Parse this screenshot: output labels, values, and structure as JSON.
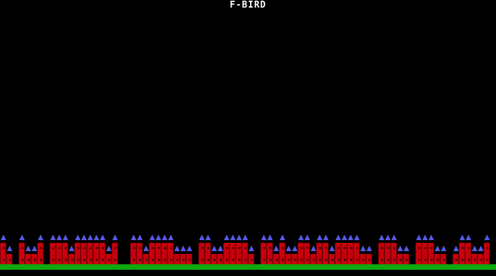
{
  "title": "F-BIRD",
  "colors": {
    "building": "#c8000c",
    "spire": "#5a5ae6",
    "ground": "#0fa80f",
    "sky": "#000000"
  },
  "skyline_levels": [
    2,
    1,
    0,
    2,
    1,
    1,
    2,
    0,
    2,
    2,
    2,
    1,
    2,
    2,
    2,
    2,
    2,
    1,
    2,
    0,
    0,
    2,
    2,
    1,
    2,
    2,
    2,
    2,
    1,
    1,
    1,
    0,
    2,
    2,
    1,
    1,
    2,
    2,
    2,
    2,
    1,
    0,
    2,
    2,
    1,
    2,
    1,
    1,
    2,
    2,
    1,
    2,
    2,
    1,
    2,
    2,
    2,
    2,
    1,
    1,
    0,
    2,
    2,
    2,
    1,
    1,
    0,
    2,
    2,
    2,
    1,
    1,
    0,
    1,
    2,
    2,
    1,
    1,
    2,
    0
  ]
}
